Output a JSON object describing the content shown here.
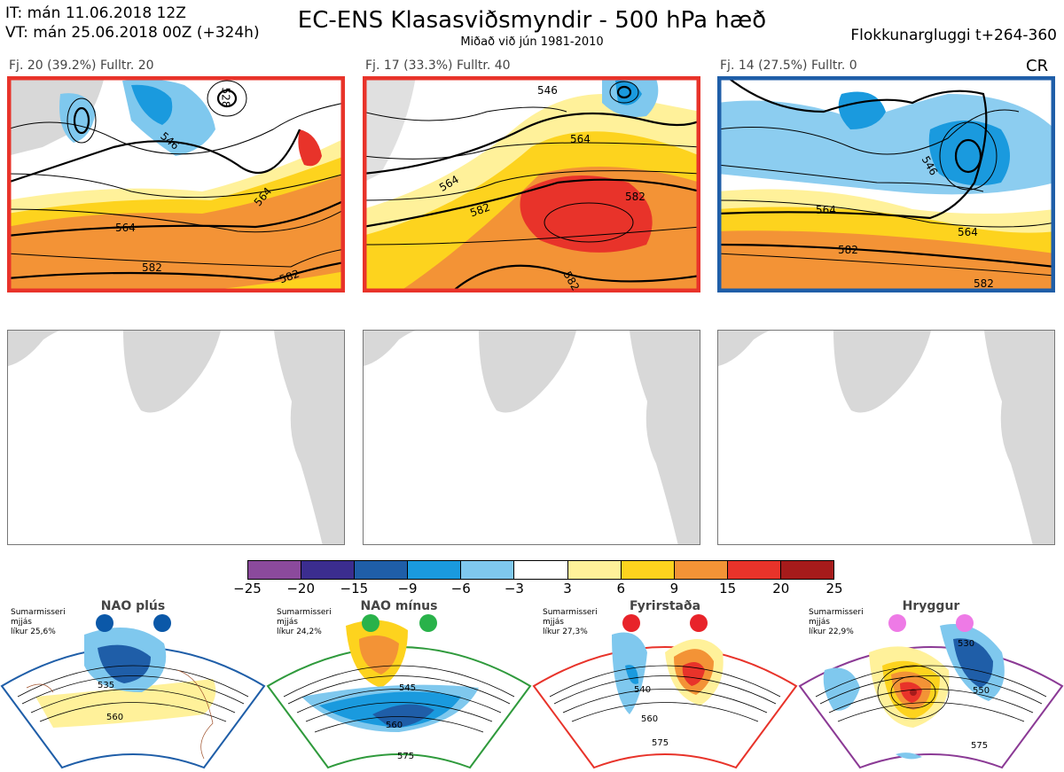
{
  "header": {
    "initial_time": "IT: mán 11.06.2018 12Z",
    "valid_time": "VT: mán 25.06.2018 00Z  (+324h)",
    "title": "EC-ENS Klasasviðsmyndir - 500 hPa hæð",
    "subtitle": "Miðað við jún 1981-2010",
    "window": "Flokkunargluggi t+264-360"
  },
  "clusters": [
    {
      "label": "Fj. 20 (39.2%)   Fulltr. 20",
      "border_color": "#e8332a",
      "contours": [
        "546",
        "528",
        "564",
        "564",
        "582",
        "582"
      ]
    },
    {
      "label": "Fj. 17 (33.3%)   Fulltr. 40",
      "border_color": "#e8332a",
      "contours": [
        "546",
        "564",
        "564",
        "582",
        "582",
        "582"
      ]
    },
    {
      "label": "Fj. 14 (27.5%)   Fulltr. 0",
      "border_color": "#1f5ea8",
      "contours": [
        "546",
        "564",
        "564",
        "582",
        "582"
      ]
    }
  ],
  "cr_label": "CR",
  "colorbar": {
    "colors": [
      "#8b4a9c",
      "#3b2d8f",
      "#1f5ea8",
      "#1a9ade",
      "#7fc8ee",
      "#ffffff",
      "#fff19a",
      "#fdd31e",
      "#f39336",
      "#e8332a",
      "#a61b1b"
    ],
    "ticks": [
      "−25",
      "−20",
      "−15",
      "−9",
      "−6",
      "−3",
      "3",
      "6",
      "9",
      "15",
      "20",
      "25"
    ]
  },
  "regimes": [
    {
      "name": "NAO plús",
      "season": "Sumarmisseri",
      "mean": "mjjás",
      "prob": "líkur 25,6%",
      "dot_color": "#0b58a8",
      "border_color": "#1f5ea8",
      "contours": [
        "535",
        "560"
      ]
    },
    {
      "name": "NAO mínus",
      "season": "Sumarmisseri",
      "mean": "mjjás",
      "prob": "líkur 24,2%",
      "dot_color": "#29b24a",
      "border_color": "#2f9a3c",
      "contours": [
        "545",
        "560",
        "575"
      ]
    },
    {
      "name": "Fyrirstaða",
      "season": "Sumarmisseri",
      "mean": "mjjás",
      "prob": "líkur 27,3%",
      "dot_color": "#e8232a",
      "border_color": "#e8332a",
      "contours": [
        "540",
        "560",
        "575"
      ]
    },
    {
      "name": "Hryggur",
      "season": "Sumarmisseri",
      "mean": "mjjás",
      "prob": "líkur 22,9%",
      "dot_color": "#ee7ae6",
      "border_color": "#8b3a95",
      "contours": [
        "530",
        "550",
        "575"
      ]
    }
  ]
}
